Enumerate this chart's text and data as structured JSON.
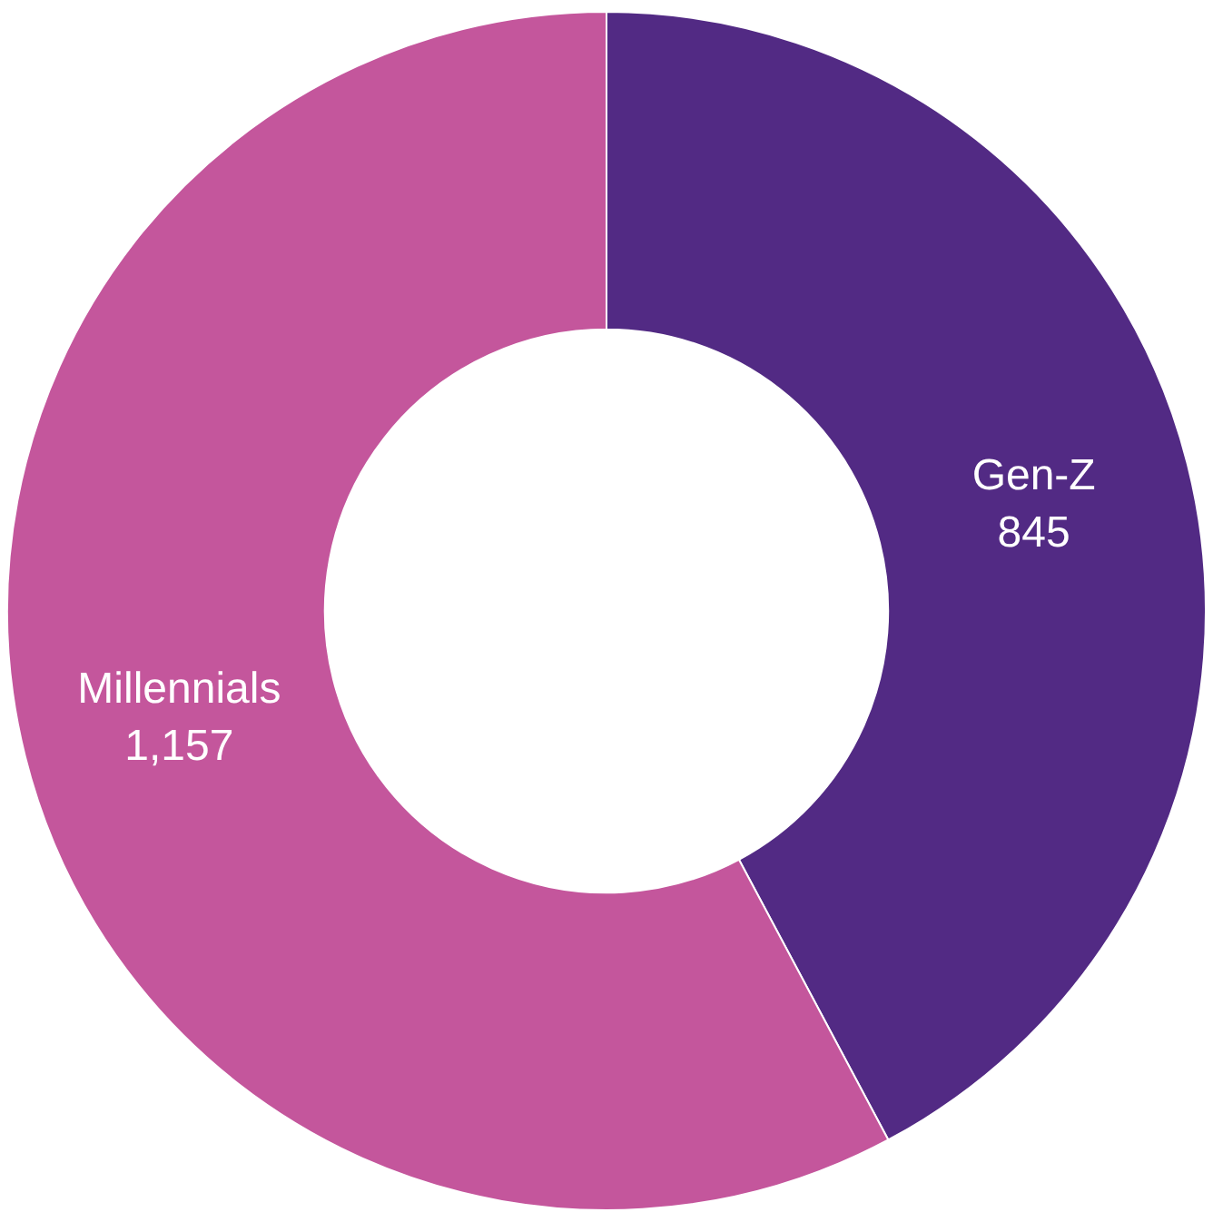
{
  "chart_data": {
    "type": "donut",
    "categories": [
      "Gen-Z",
      "Millennials"
    ],
    "values": [
      845,
      1157
    ],
    "colors": [
      "#522a84",
      "#c4569c"
    ],
    "value_labels": [
      "845",
      "1,157"
    ],
    "legend": false
  }
}
